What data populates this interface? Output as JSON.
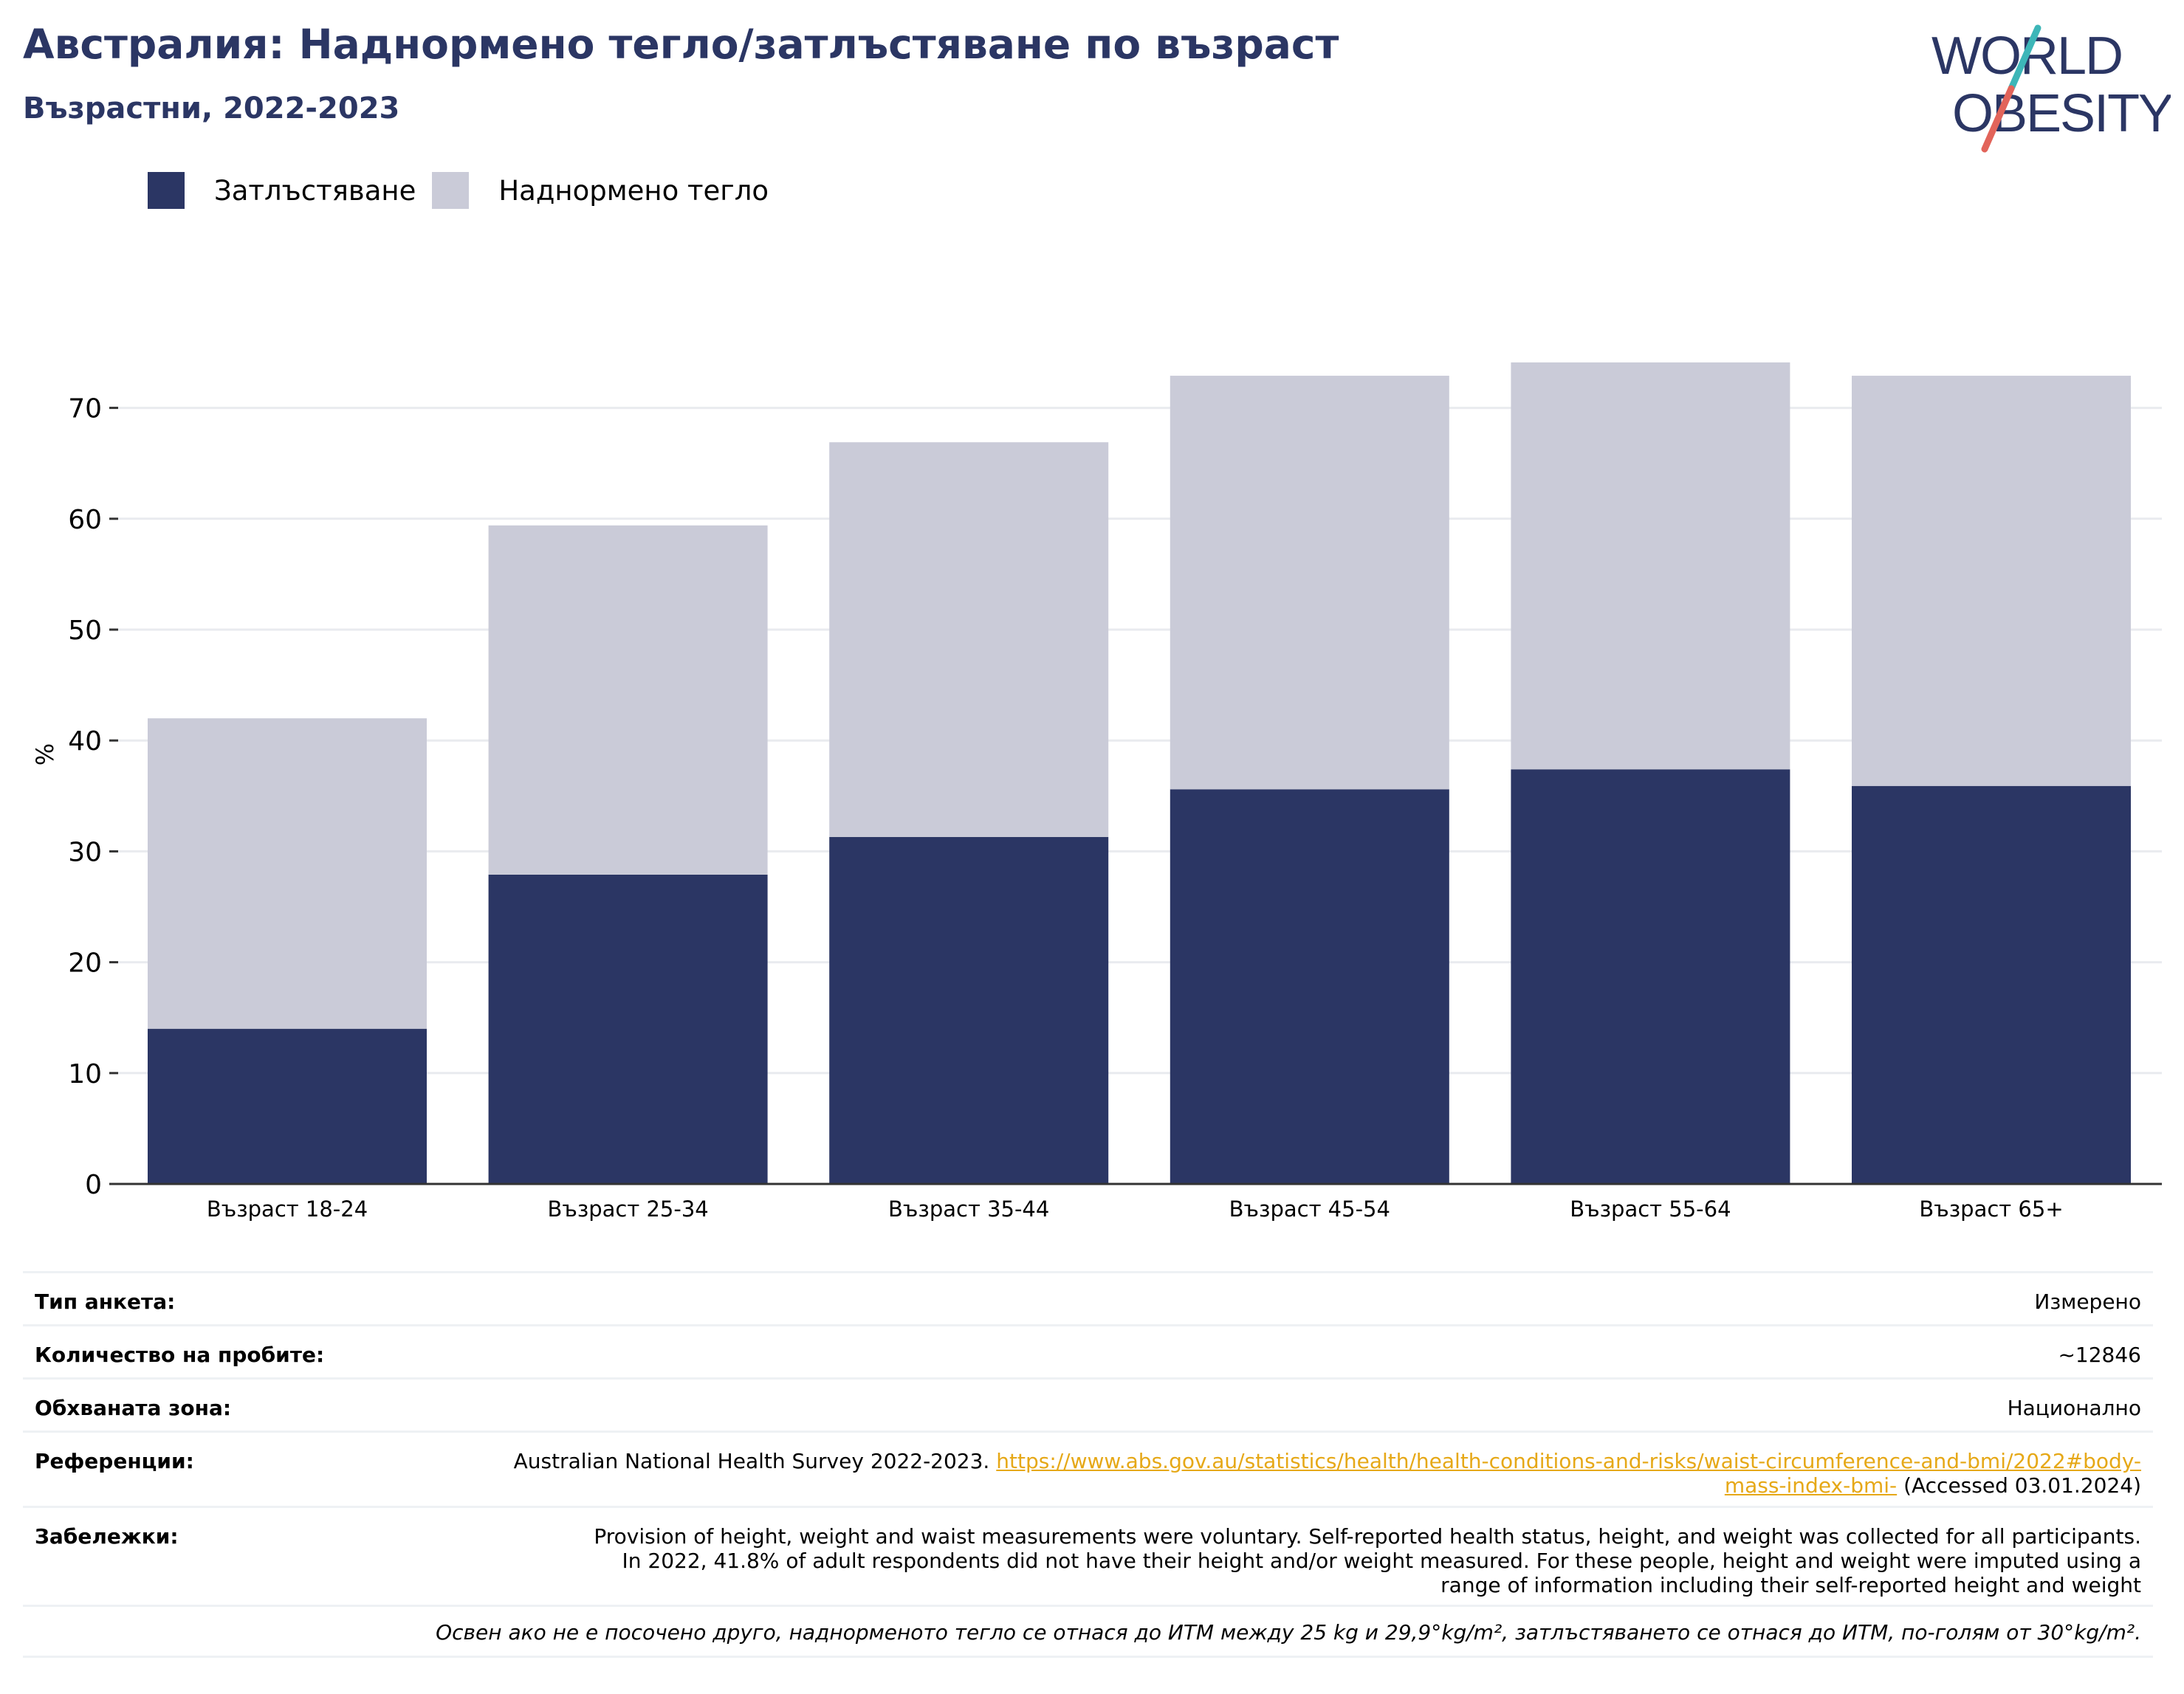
{
  "header": {
    "title": "Австралия: Наднормено тегло/затлъстяване по възраст",
    "subtitle": "Възрастни, 2022-2023"
  },
  "logo": {
    "line1": "WORLD",
    "line2": "OBESITY",
    "colors": {
      "text": "#2b3664",
      "stroke_teal": "#3db6b8",
      "stroke_coral": "#e2645a"
    }
  },
  "colors": {
    "obesity": "#2b3664",
    "overweight": "#cacbd8",
    "grid": "#e9ebef",
    "axis": "#333333"
  },
  "chart_data": {
    "type": "bar",
    "stacked": true,
    "categories": [
      "Възраст 18-24",
      "Възраст 25-34",
      "Възраст 35-44",
      "Възраст 45-54",
      "Възраст 55-64",
      "Възраст 65+"
    ],
    "series": [
      {
        "name": "Затлъстяване",
        "color": "#2b3664",
        "values": [
          14.0,
          27.9,
          31.3,
          35.6,
          37.4,
          35.9
        ]
      },
      {
        "name": "Наднормено тегло",
        "color": "#cacbd8",
        "values": [
          28.0,
          31.5,
          35.6,
          37.3,
          36.7,
          37.0
        ]
      }
    ],
    "ylabel": "%",
    "ylim": [
      0,
      77
    ],
    "yticks": [
      0,
      10,
      20,
      30,
      40,
      50,
      60,
      70
    ],
    "grid": true,
    "legend_position": "top-left"
  },
  "meta": {
    "rows": [
      {
        "label": "Тип анкета:",
        "value": "Измерено"
      },
      {
        "label": "Количество на пробите:",
        "value": "~12846"
      },
      {
        "label": "Обхваната зона:",
        "value": "Национално"
      }
    ],
    "references": {
      "label": "Референции:",
      "text": "Australian National Health Survey 2022-2023.",
      "link": "https://www.abs.gov.au/statistics/health/health-conditions-and-risks/waist-circumference-and-bmi/2022#body-mass-index-bmi-",
      "accessed": "(Accessed 03.01.2024)"
    },
    "notes": {
      "label": "Забележки:",
      "text": "Provision of height, weight and waist measurements were voluntary. Self-reported health status, height, and weight was collected for all participants. In 2022, 41.8% of adult respondents did not have their height and/or weight measured. For these people, height and weight were imputed using a range of information including their self-reported height and weight"
    },
    "footnote": "Освен ако не е посочено друго, наднорменото тегло се отнася до ИТМ между 25 kg и 29,9°kg/m², затлъстяването се отнася до ИТМ, по-голям от 30°kg/m²."
  }
}
